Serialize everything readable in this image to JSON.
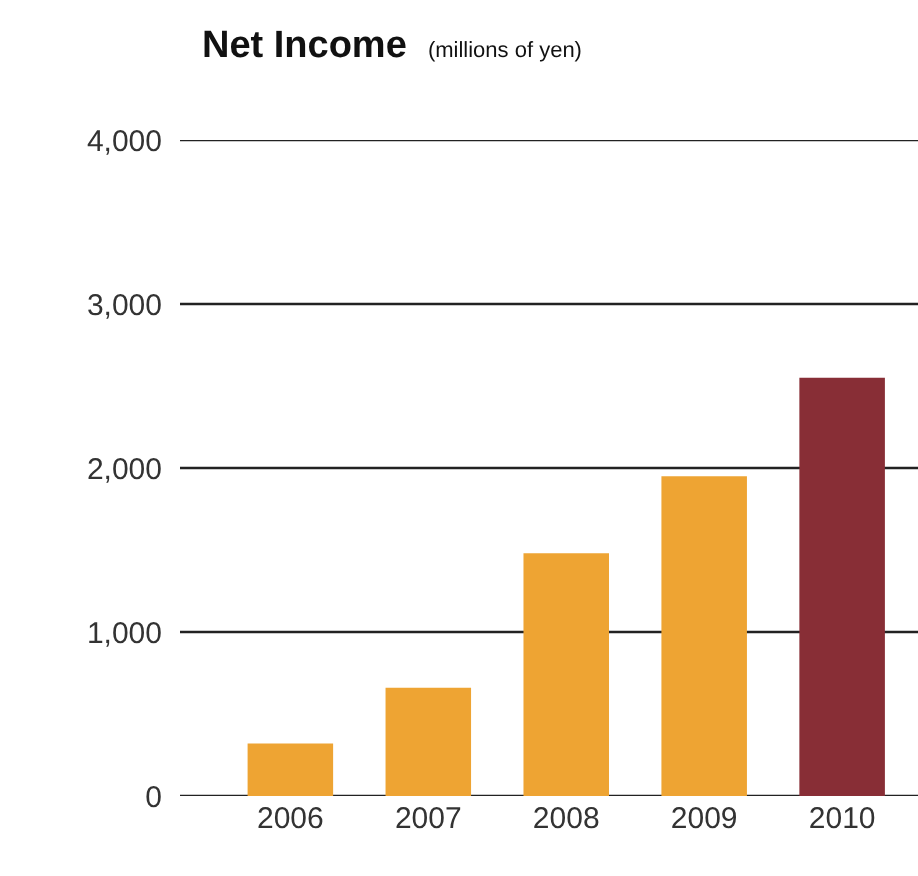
{
  "chart_data": {
    "type": "bar",
    "title": "Net Income",
    "subtitle": "(millions of yen)",
    "categories": [
      "2006",
      "2007",
      "2008",
      "2009",
      "2010"
    ],
    "values": [
      320,
      660,
      1480,
      1950,
      2550
    ],
    "colors": [
      "#eea433",
      "#eea433",
      "#eea433",
      "#eea433",
      "#882e36"
    ],
    "ylim": [
      0,
      4000
    ],
    "yticks": [
      {
        "value": 0,
        "label": "0"
      },
      {
        "value": 1000,
        "label": "1,000"
      },
      {
        "value": 2000,
        "label": "2,000"
      },
      {
        "value": 3000,
        "label": "3,000"
      },
      {
        "value": 4000,
        "label": "4,000"
      }
    ],
    "grid": "y"
  }
}
